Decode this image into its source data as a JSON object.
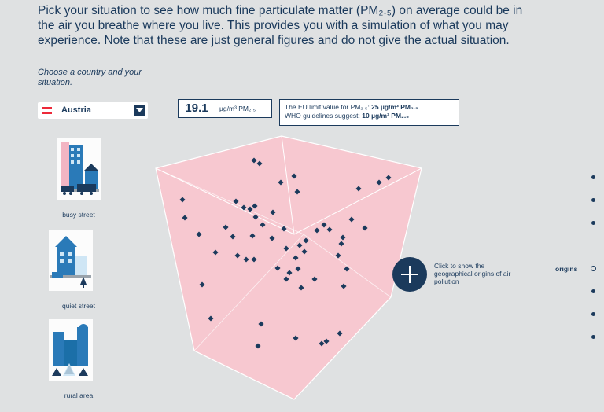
{
  "intro": "Pick your situation to see how much fine particulate matter (PM₂.₅) on average could be in the air you breathe where you live. This provides you with a simulation of what you may experience. Note that these are just general figures and do not give the actual situation.",
  "choose_label": "Choose a country and your situation.",
  "country": {
    "name": "Austria",
    "flag_colors": [
      "#ed2939",
      "#ffffff",
      "#ed2939"
    ]
  },
  "value": {
    "number": "19.1",
    "unit": "µg/m³ PM₂.₅"
  },
  "limits": {
    "eu_prefix": "The EU limit value for PM₂.₅: ",
    "eu_value": "25 µg/m³ PM₂.₅",
    "who_prefix": "WHO guidelines suggest: ",
    "who_value": "10 µg/m³ PM₂.₅"
  },
  "situations": [
    {
      "label": "busy street",
      "icon": "busy-street-icon"
    },
    {
      "label": "quiet street",
      "icon": "quiet-street-icon"
    },
    {
      "label": "rural area",
      "icon": "rural-area-icon"
    }
  ],
  "origins_button": {
    "text": "Click to show the geographical origins of air pollution"
  },
  "side_nav": {
    "active_label": "origins",
    "count": 7,
    "active_index": 3
  },
  "colors": {
    "navy": "#1b3a5c",
    "cube": "#f7c8d0",
    "background": "#dfe1e2"
  }
}
